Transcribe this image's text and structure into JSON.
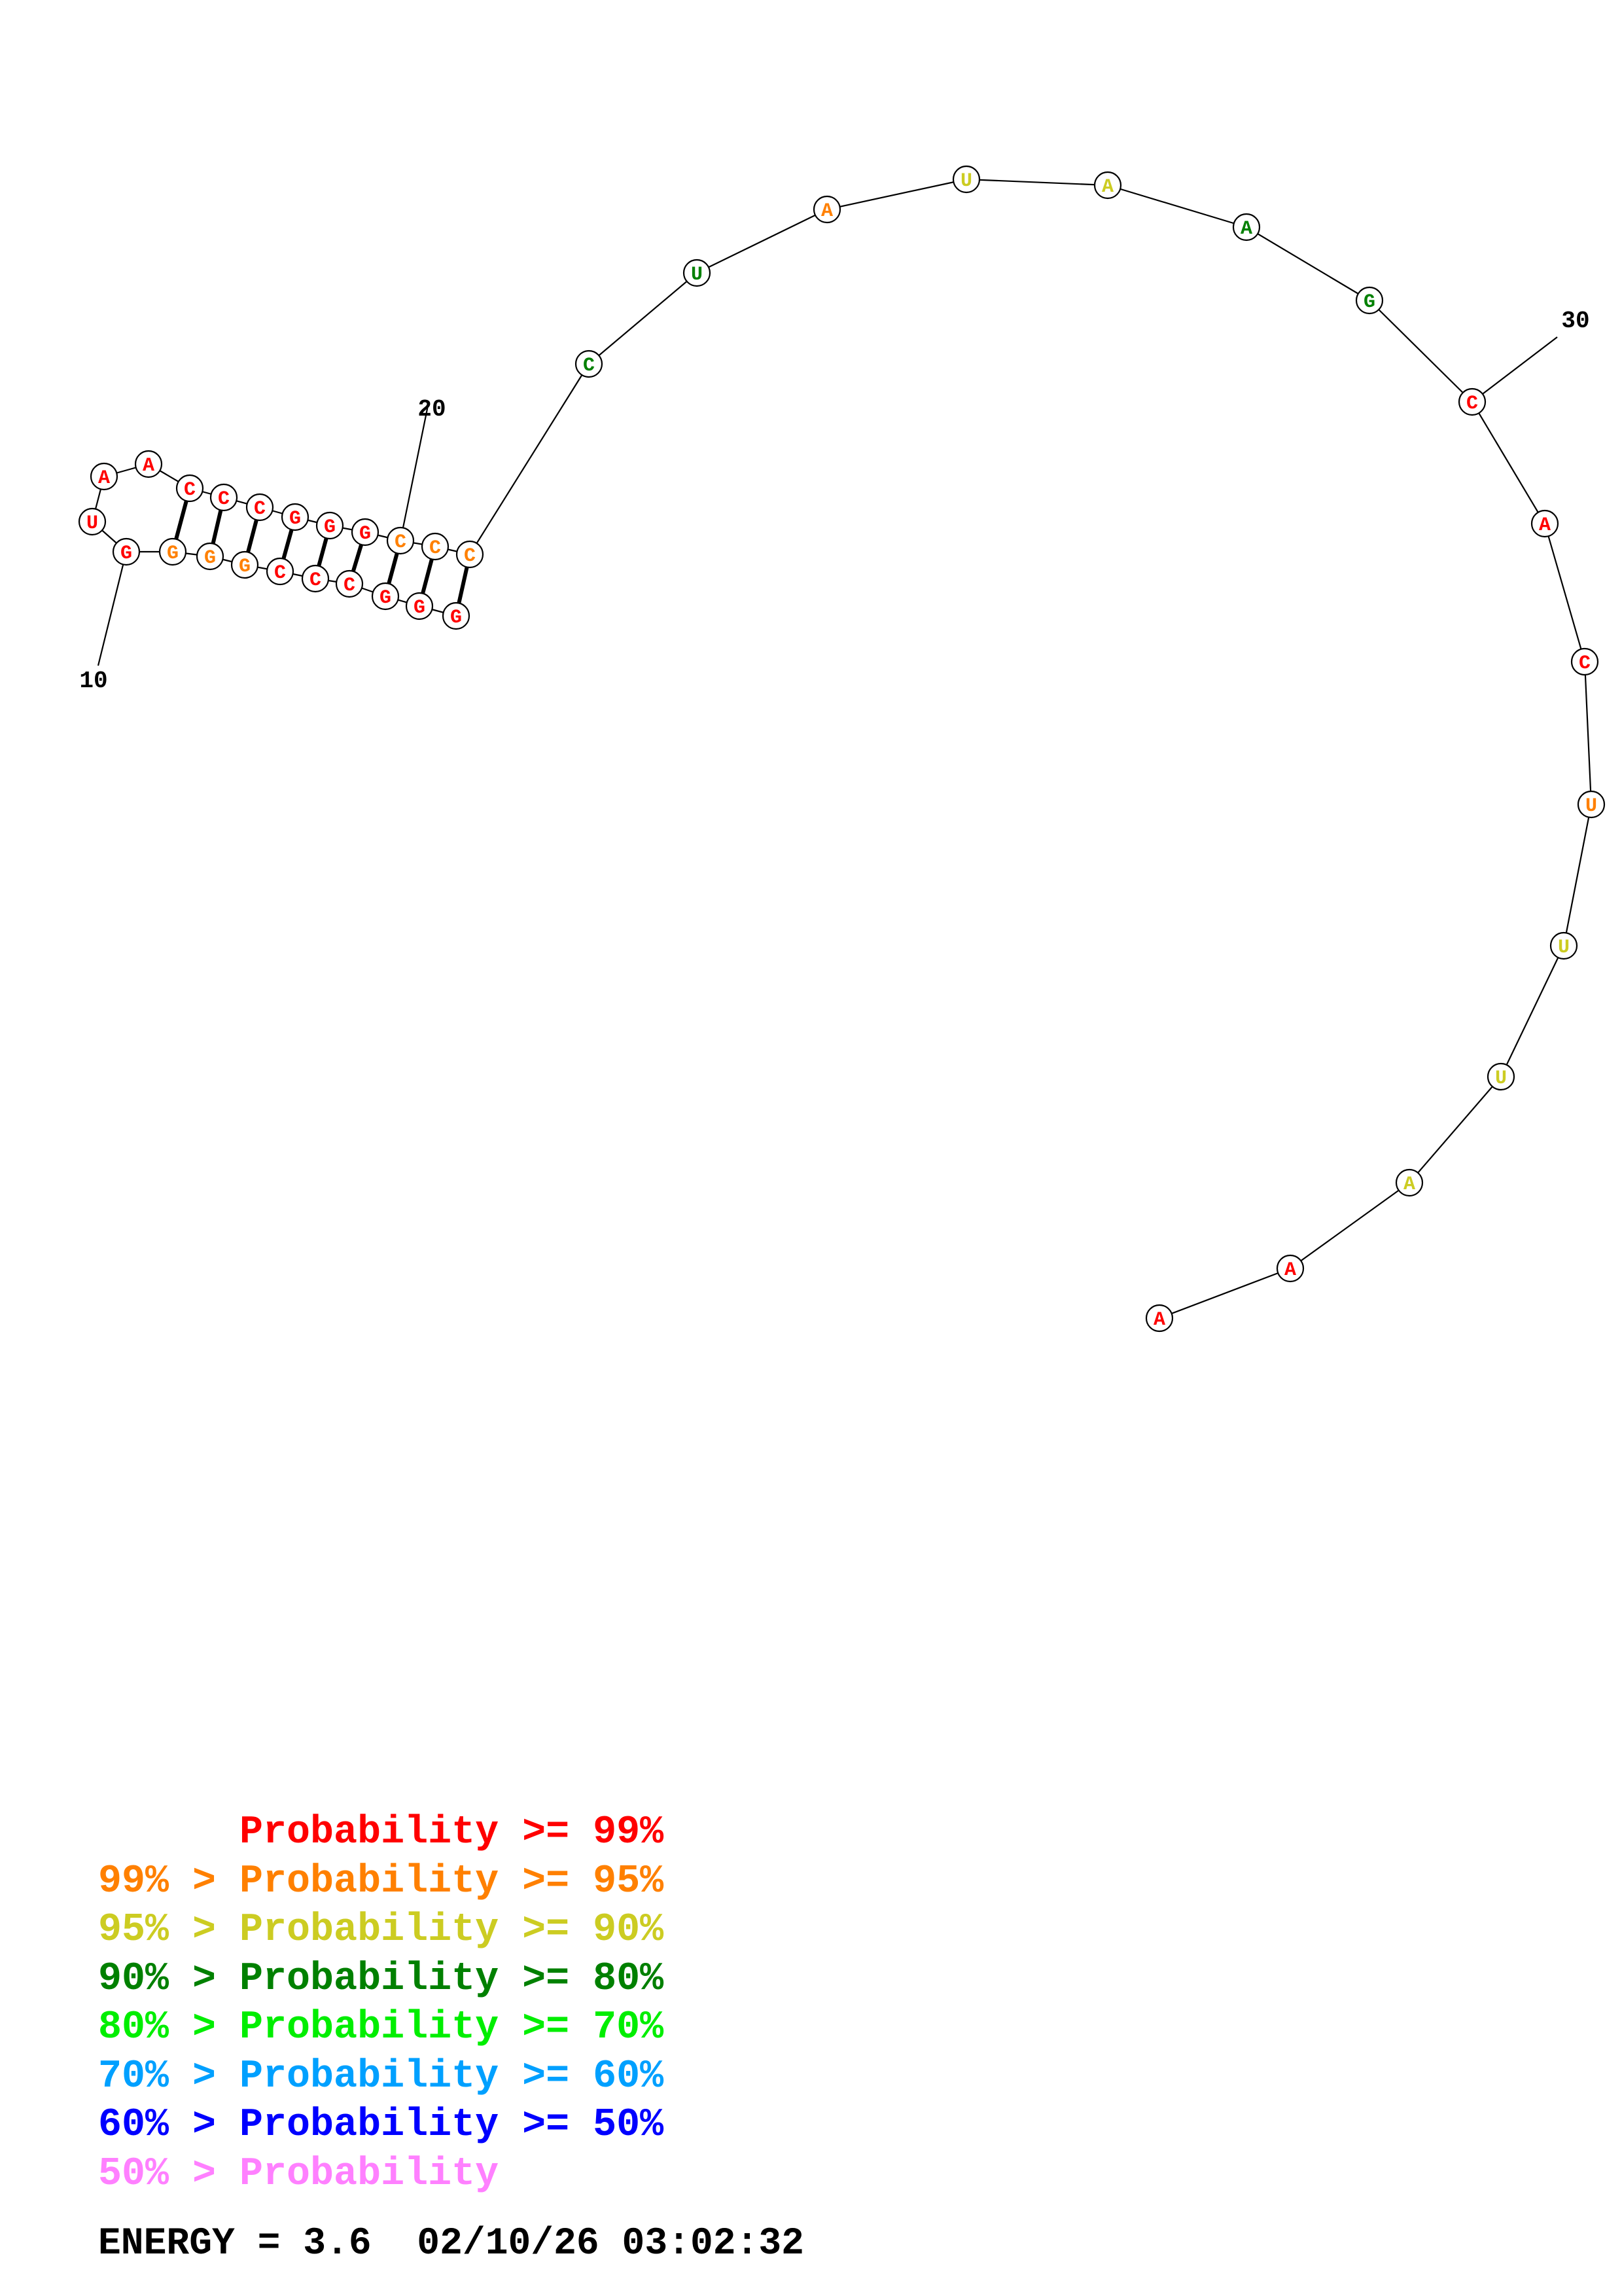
{
  "colors": {
    "p99": "#ff0000",
    "p95": "#ff8000",
    "p90": "#cccc22",
    "p80": "#008000",
    "p70": "#00ee00",
    "p60": "#00a0ff",
    "p50": "#0000ff",
    "plow": "#ff80ff"
  },
  "diagram": {
    "type": "rna-secondary-structure",
    "position_labels": [
      "10",
      "20",
      "30"
    ],
    "nucleotides": [
      {
        "base": "G",
        "color": "p99"
      },
      {
        "base": "U",
        "color": "p99"
      },
      {
        "base": "A",
        "color": "p99"
      },
      {
        "base": "A",
        "color": "p99"
      },
      {
        "base": "C",
        "color": "p99"
      },
      {
        "base": "C",
        "color": "p99"
      },
      {
        "base": "C",
        "color": "p99"
      },
      {
        "base": "G",
        "color": "p99"
      },
      {
        "base": "G",
        "color": "p99"
      },
      {
        "base": "G",
        "color": "p99"
      },
      {
        "base": "C",
        "color": "p95"
      },
      {
        "base": "C",
        "color": "p95"
      },
      {
        "base": "C",
        "color": "p95"
      },
      {
        "base": "C",
        "color": "p80"
      },
      {
        "base": "U",
        "color": "p80"
      },
      {
        "base": "A",
        "color": "p95"
      },
      {
        "base": "U",
        "color": "p90"
      },
      {
        "base": "A",
        "color": "p90"
      },
      {
        "base": "A",
        "color": "p80"
      },
      {
        "base": "G",
        "color": "p80"
      },
      {
        "base": "C",
        "color": "p99"
      },
      {
        "base": "A",
        "color": "p99"
      },
      {
        "base": "C",
        "color": "p99"
      },
      {
        "base": "U",
        "color": "p95"
      },
      {
        "base": "U",
        "color": "p90"
      },
      {
        "base": "U",
        "color": "p90"
      },
      {
        "base": "A",
        "color": "p90"
      },
      {
        "base": "A",
        "color": "p99"
      },
      {
        "base": "A",
        "color": "p99"
      },
      {
        "base": "G",
        "color": "p99"
      },
      {
        "base": "G",
        "color": "p99"
      },
      {
        "base": "G",
        "color": "p99"
      },
      {
        "base": "C",
        "color": "p99"
      },
      {
        "base": "C",
        "color": "p99"
      },
      {
        "base": "C",
        "color": "p99"
      },
      {
        "base": "G",
        "color": "p95"
      },
      {
        "base": "G",
        "color": "p95"
      },
      {
        "base": "G",
        "color": "p95"
      }
    ]
  },
  "legend": [
    {
      "text": "      Probability >= 99%",
      "color": "p99"
    },
    {
      "text": "99% > Probability >= 95%",
      "color": "p95"
    },
    {
      "text": "95% > Probability >= 90%",
      "color": "p90"
    },
    {
      "text": "90% > Probability >= 80%",
      "color": "p80"
    },
    {
      "text": "80% > Probability >= 70%",
      "color": "p70"
    },
    {
      "text": "70% > Probability >= 60%",
      "color": "p60"
    },
    {
      "text": "60% > Probability >= 50%",
      "color": "p50"
    },
    {
      "text": "50% > Probability",
      "color": "plow"
    }
  ],
  "energy": "ENERGY = 3.6  02/10/26 03:02:32"
}
